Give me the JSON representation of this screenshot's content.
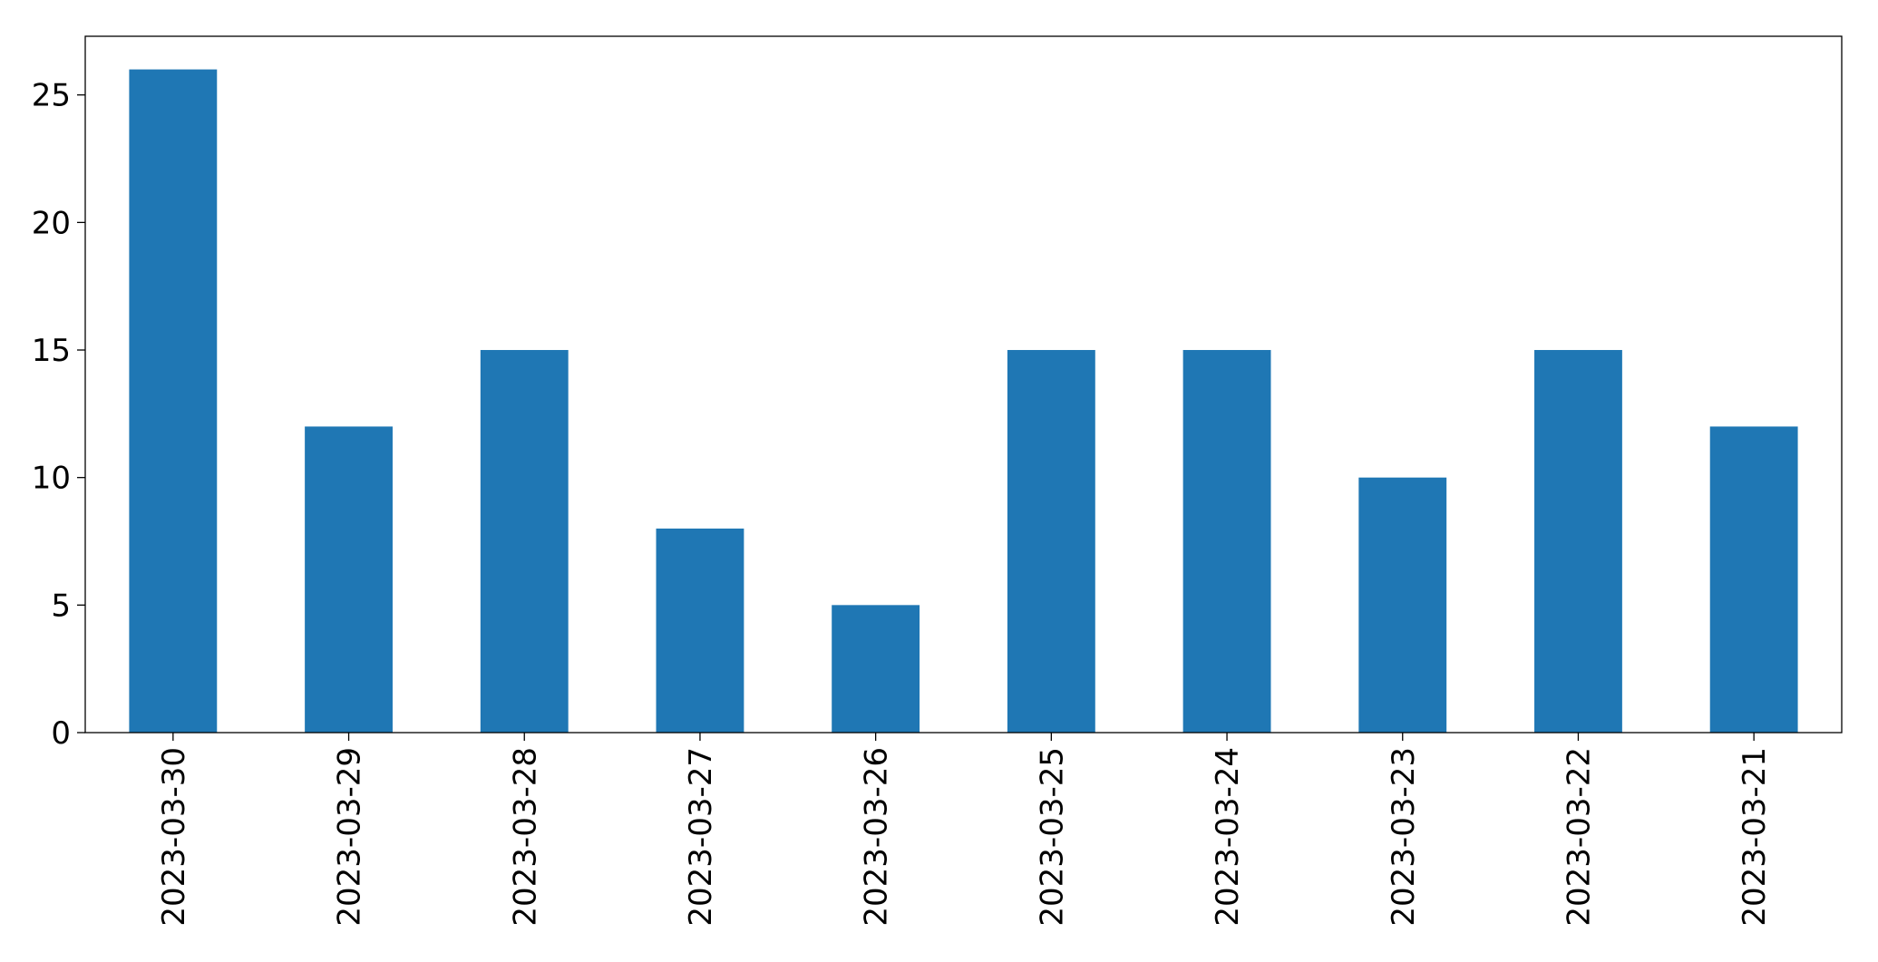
{
  "chart_data": {
    "type": "bar",
    "categories": [
      "2023-03-30",
      "2023-03-29",
      "2023-03-28",
      "2023-03-27",
      "2023-03-26",
      "2023-03-25",
      "2023-03-24",
      "2023-03-23",
      "2023-03-22",
      "2023-03-21"
    ],
    "values": [
      26,
      12,
      15,
      8,
      5,
      15,
      15,
      10,
      15,
      12
    ],
    "color": "#1f77b4",
    "ylim": [
      0,
      27.3
    ],
    "yticks": [
      0,
      5,
      10,
      15,
      20,
      25
    ],
    "grid": false
  }
}
